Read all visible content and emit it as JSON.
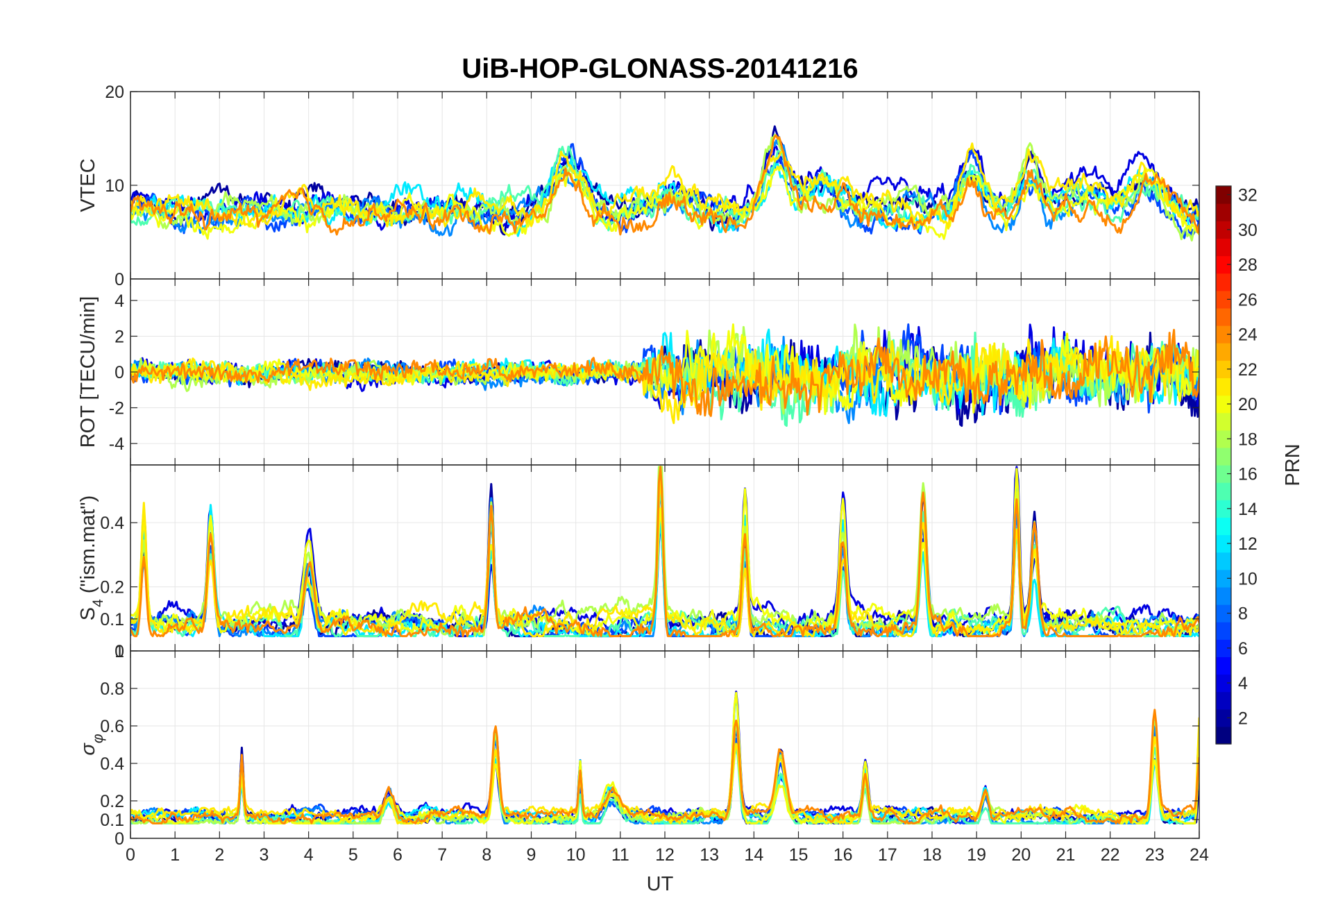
{
  "chart_data": {
    "type": "line",
    "title": "UiB-HOP-GLONASS-20141216",
    "xlabel": "UT",
    "xlim": [
      0,
      24
    ],
    "x_ticks": [
      0,
      1,
      2,
      3,
      4,
      5,
      6,
      7,
      8,
      9,
      10,
      11,
      12,
      13,
      14,
      15,
      16,
      17,
      18,
      19,
      20,
      21,
      22,
      23,
      24
    ],
    "grid": true,
    "panels": [
      {
        "id": "vtec",
        "ylabel": "VTEC",
        "ylim": [
          0,
          20
        ],
        "y_ticks": [
          0,
          10,
          20
        ],
        "baseline": 7.5,
        "noise": 1.3,
        "bumps": [
          [
            9.8,
            0.45,
            5.5
          ],
          [
            12.2,
            0.5,
            3
          ],
          [
            14.5,
            0.35,
            7
          ],
          [
            15.5,
            0.6,
            3
          ],
          [
            18.9,
            0.35,
            5
          ],
          [
            20.2,
            0.3,
            5
          ],
          [
            21.3,
            0.8,
            3
          ],
          [
            22.8,
            0.5,
            4
          ]
        ]
      },
      {
        "id": "rot",
        "ylabel": "ROT [TECU/min]",
        "ylim": [
          -5.2,
          5.2
        ],
        "y_ticks": [
          -4,
          -2,
          0,
          2,
          4
        ],
        "baseline": 0,
        "noise": 0.35,
        "bumps": []
      },
      {
        "id": "s4",
        "ylabel": "S4 (\"ism.mat\")",
        "ylabel_main": "S",
        "ylabel_sub": "4",
        "ylabel_rest": " (\"ism.mat\")",
        "ylim": [
          0,
          0.58
        ],
        "y_ticks": [
          0,
          0.1,
          0.2,
          0.4
        ],
        "baseline": 0.08,
        "noise": 0.03,
        "bumps": [
          [
            0.3,
            0.08,
            0.35
          ],
          [
            1.8,
            0.1,
            0.3
          ],
          [
            4.0,
            0.15,
            0.25
          ],
          [
            8.1,
            0.08,
            0.4
          ],
          [
            11.9,
            0.08,
            0.45
          ],
          [
            13.8,
            0.08,
            0.3
          ],
          [
            16.0,
            0.1,
            0.35
          ],
          [
            17.8,
            0.1,
            0.35
          ],
          [
            19.9,
            0.08,
            0.4
          ],
          [
            20.3,
            0.1,
            0.3
          ]
        ]
      },
      {
        "id": "sigma",
        "ylabel": "σφ",
        "ylabel_main": "σ",
        "ylabel_sub": "φ",
        "ylim": [
          0,
          1
        ],
        "y_ticks": [
          0,
          0.1,
          0.2,
          0.4,
          0.6,
          0.8,
          1
        ],
        "baseline": 0.12,
        "noise": 0.03,
        "bumps": [
          [
            2.5,
            0.05,
            0.3
          ],
          [
            5.8,
            0.15,
            0.12
          ],
          [
            8.2,
            0.1,
            0.45
          ],
          [
            10.1,
            0.05,
            0.3
          ],
          [
            10.8,
            0.2,
            0.12
          ],
          [
            13.6,
            0.1,
            0.55
          ],
          [
            14.6,
            0.15,
            0.3
          ],
          [
            16.5,
            0.08,
            0.25
          ],
          [
            19.2,
            0.1,
            0.15
          ],
          [
            23.0,
            0.1,
            0.55
          ],
          [
            24.0,
            0.05,
            0.5
          ]
        ]
      }
    ],
    "colorbar": {
      "label": "PRN",
      "min": 1,
      "max": 32,
      "colormap": "jet",
      "ticks": [
        2,
        4,
        6,
        8,
        10,
        12,
        14,
        16,
        18,
        20,
        22,
        24,
        26,
        28,
        30,
        32
      ]
    },
    "series_prn": [
      2,
      4,
      7,
      9,
      12,
      15,
      18,
      20,
      21,
      24
    ]
  }
}
